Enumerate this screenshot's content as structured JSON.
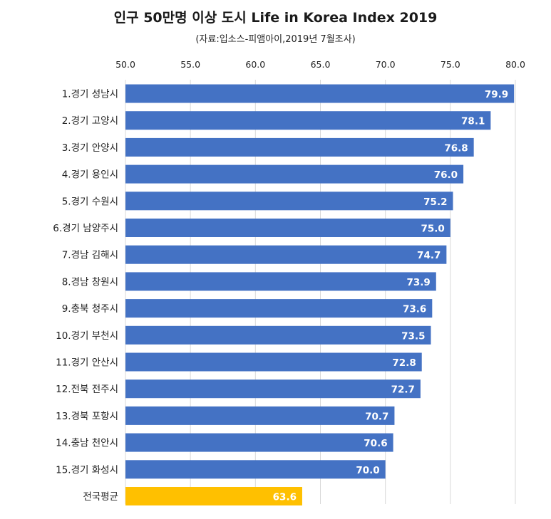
{
  "chart_data": {
    "type": "bar",
    "orientation": "horizontal",
    "title": "인구 50만명 이상 도시 Life in Korea Index 2019",
    "subtitle": "(자료:입소스-피앰아이,2019년 7월조사)",
    "categories": [
      "1.경기 성남시",
      "2.경기 고양시",
      "3.경기 안양시",
      "4.경기 용인시",
      "5.경기 수원시",
      "6.경기 남양주시",
      "7.경남 김해시",
      "8.경남 창원시",
      "9.충북 청주시",
      "10.경기 부천시",
      "11.경기 안산시",
      "12.전북 전주시",
      "13.경북 포항시",
      "14.충남 천안시",
      "15.경기 화성시",
      "전국평균"
    ],
    "values": [
      79.9,
      78.1,
      76.8,
      76.0,
      75.2,
      75.0,
      74.7,
      73.9,
      73.6,
      73.5,
      72.8,
      72.7,
      70.7,
      70.6,
      70.0,
      63.6
    ],
    "value_labels": [
      "79.9",
      "78.1",
      "76.8",
      "76.0",
      "75.2",
      "75.0",
      "74.7",
      "73.9",
      "73.6",
      "73.5",
      "72.8",
      "72.7",
      "70.7",
      "70.6",
      "70.0",
      "63.6"
    ],
    "xlim": [
      50.0,
      80.0
    ],
    "x_ticks": [
      "50.0",
      "55.0",
      "60.0",
      "65.0",
      "70.0",
      "75.0",
      "80.0"
    ],
    "x_axis_position": "top",
    "grid": true,
    "colors": {
      "bar": "#4472c4",
      "highlight": "#ffc000",
      "grid": "#d9d9d9"
    },
    "highlight_category": "전국평균"
  }
}
